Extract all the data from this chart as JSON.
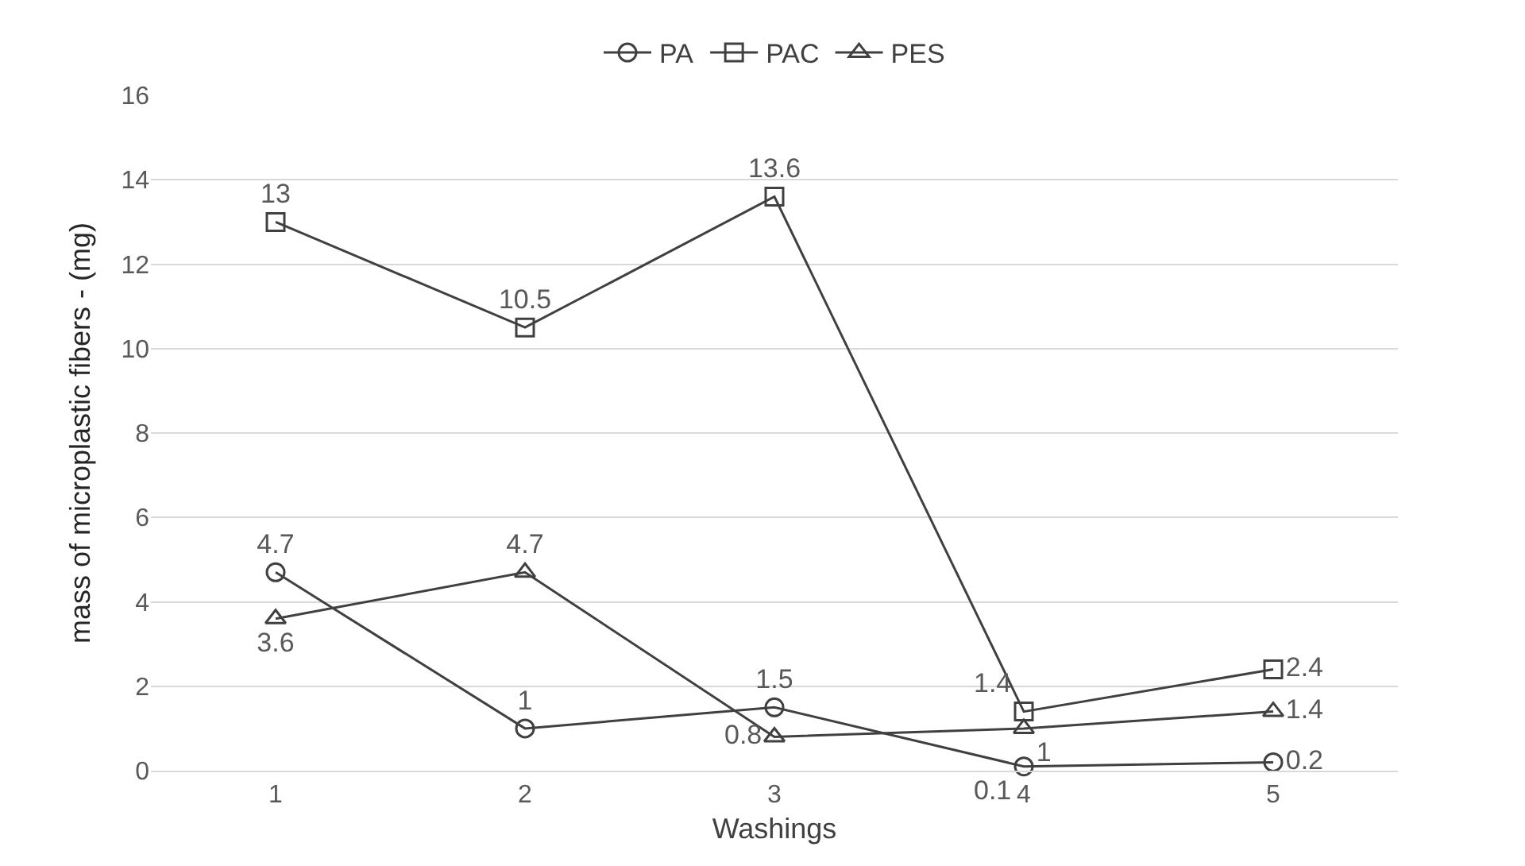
{
  "chart_data": {
    "type": "line",
    "xlabel": "Washings",
    "ylabel": "mass of microplastic fibers - (mg)",
    "categories": [
      "1",
      "2",
      "3",
      "4",
      "5"
    ],
    "series": [
      {
        "name": "PA",
        "color": "#404040",
        "marker": "circle",
        "values": [
          4.7,
          1,
          1.5,
          0.1,
          0.2
        ]
      },
      {
        "name": "PAC",
        "color": "#404040",
        "marker": "square",
        "values": [
          13,
          10.5,
          13.6,
          1.4,
          2.4
        ]
      },
      {
        "name": "PES",
        "color": "#404040",
        "marker": "triangle",
        "values": [
          3.6,
          4.7,
          0.8,
          1,
          1.4
        ]
      }
    ],
    "ylim": [
      0,
      16
    ],
    "yticks": [
      0,
      2,
      4,
      6,
      8,
      10,
      12,
      14,
      16
    ],
    "grid": "y",
    "legend": "top",
    "data_labels": true,
    "line_style": "solid"
  }
}
